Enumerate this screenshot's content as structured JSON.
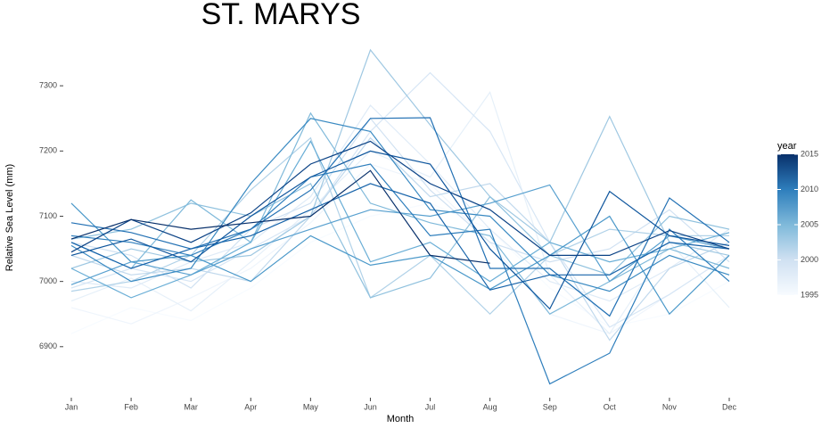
{
  "chart_data": {
    "type": "line",
    "title": "ST. MARYS",
    "x_label": "Month",
    "y_label": "Relative Sea Level (mm)",
    "categories": [
      "Jan",
      "Feb",
      "Mar",
      "Apr",
      "May",
      "Jun",
      "Jul",
      "Aug",
      "Sep",
      "Oct",
      "Nov",
      "Dec"
    ],
    "ylim": [
      6830,
      7370
    ],
    "yticks": [
      6900,
      7000,
      7100,
      7200,
      7300
    ],
    "grid": false,
    "legend": {
      "title": "year",
      "lim": [
        1995,
        2015
      ],
      "ticks": [
        1995,
        2000,
        2005,
        2010,
        2015
      ],
      "colors": [
        "#f7fbff",
        "#d0e1f2",
        "#7fb9da",
        "#2e7ebc",
        "#08306b"
      ]
    },
    "series": [
      {
        "color": "#f7fbff",
        "values": [
          6920,
          6960,
          6940,
          6990,
          7060,
          7100,
          7120,
          7080,
          6990,
          6930,
          6950,
          7000
        ]
      },
      {
        "color": "#eff5fc",
        "values": [
          6960,
          6935,
          6975,
          7020,
          7090,
          7180,
          7150,
          7060,
          6950,
          6920,
          6980,
          7040
        ]
      },
      {
        "color": "#e6f0f9",
        "values": [
          6970,
          7005,
          6955,
          7030,
          7110,
          7200,
          7160,
          7290,
          7010,
          6920,
          7060,
          6960
        ]
      },
      {
        "color": "#dfebf7",
        "values": [
          7000,
          6990,
          7030,
          7060,
          7130,
          7270,
          7180,
          7080,
          7000,
          6970,
          7020,
          7080
        ]
      },
      {
        "color": "#d7e6f5",
        "values": [
          6990,
          7020,
          7000,
          7050,
          7100,
          7230,
          7320,
          7230,
          7060,
          6930,
          6980,
          7040
        ]
      },
      {
        "color": "#d0e1f2",
        "values": [
          7060,
          7040,
          6990,
          7080,
          7120,
          7250,
          7140,
          7060,
          7030,
          7050,
          7110,
          7030
        ]
      },
      {
        "color": "#c1d9ed",
        "values": [
          7040,
          7010,
          7020,
          7000,
          7100,
          7220,
          7130,
          7150,
          7060,
          6910,
          7020,
          7060
        ]
      },
      {
        "color": "#b1d2e8",
        "values": [
          6985,
          7000,
          7040,
          7140,
          7220,
          6975,
          7040,
          6950,
          7040,
          7080,
          7070,
          7070
        ]
      },
      {
        "color": "#9fc8e2",
        "values": [
          7020,
          7050,
          7030,
          7040,
          7100,
          7355,
          7240,
          7130,
          7060,
          7253,
          7060,
          7040
        ]
      },
      {
        "color": "#8fc1de",
        "values": [
          7065,
          7080,
          7120,
          7100,
          7150,
          6975,
          7005,
          7130,
          7040,
          7010,
          7100,
          7080
        ]
      },
      {
        "color": "#7fb9da",
        "values": [
          7060,
          7020,
          7125,
          7060,
          7258,
          7120,
          7090,
          7070,
          6950,
          7000,
          7050,
          7020
        ]
      },
      {
        "color": "#6aaed6",
        "values": [
          7020,
          6975,
          7010,
          7060,
          7215,
          7030,
          7060,
          7000,
          7060,
          7030,
          7050,
          7075
        ]
      },
      {
        "color": "#58a0cf",
        "values": [
          6995,
          7030,
          7010,
          7050,
          7080,
          7110,
          7100,
          7120,
          7148,
          7000,
          7070,
          7050
        ]
      },
      {
        "color": "#4a98c9",
        "values": [
          7120,
          7030,
          7040,
          7000,
          7070,
          7025,
          7040,
          6988,
          7040,
          7100,
          6950,
          7040
        ]
      },
      {
        "color": "#3a8ac2",
        "values": [
          7055,
          7000,
          7020,
          7150,
          7250,
          7230,
          7110,
          7100,
          7010,
          6985,
          7040,
          7010
        ]
      },
      {
        "color": "#2e7ebc",
        "values": [
          7070,
          7060,
          7040,
          7080,
          7160,
          7180,
          7070,
          7080,
          6843,
          6890,
          7080,
          7000
        ]
      },
      {
        "color": "#2371b4",
        "values": [
          7090,
          7075,
          7050,
          7080,
          7140,
          7250,
          7251,
          7020,
          7020,
          6947,
          7128,
          7060
        ]
      },
      {
        "color": "#1864aa",
        "values": [
          7060,
          7020,
          7050,
          7070,
          7110,
          7150,
          7120,
          6987,
          7010,
          7010,
          7060,
          7050
        ]
      },
      {
        "color": "#0f569d",
        "values": [
          7040,
          7065,
          7030,
          7100,
          7160,
          7200,
          7180,
          7050,
          6958,
          7138,
          7070,
          7055
        ]
      },
      {
        "color": "#0b4285",
        "values": [
          7045,
          7095,
          7060,
          7105,
          7180,
          7215,
          7150,
          7110,
          7040,
          7040,
          7078,
          7050
        ]
      },
      {
        "color": "#08306b",
        "values": [
          7065,
          7095,
          7080,
          7090,
          7100,
          7170,
          7040,
          7028,
          null,
          null,
          null,
          null
        ]
      }
    ]
  }
}
